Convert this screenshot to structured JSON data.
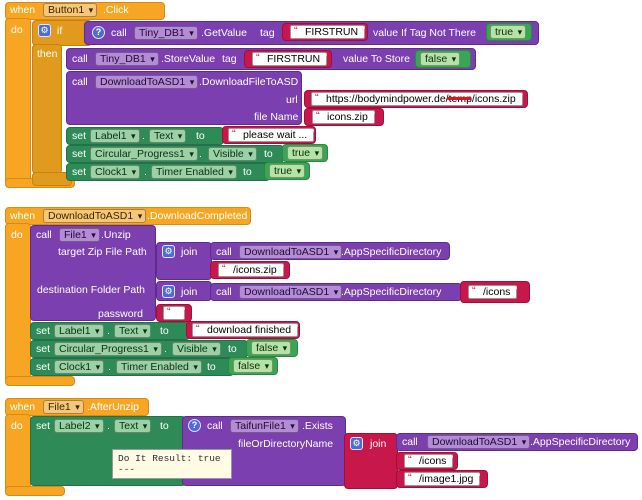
{
  "k": {
    "when": "when",
    "do": "do",
    "then": "then",
    "if": "if",
    "call": "call",
    "set": "set",
    "to": "to",
    "join": "join",
    "gear": "⚙",
    "help": "?",
    "dot": "."
  },
  "b1": {
    "comp": "Button1",
    "evt": ".Click",
    "db_comp": "Tiny_DB1",
    "getvalue": ".GetValue",
    "tag": "tag",
    "firstrun": "FIRSTRUN",
    "vint": "value If Tag Not There",
    "true": "true",
    "db_comp2": "Tiny_DB1",
    "storevalue": ".StoreValue",
    "tag2": "tag",
    "firstrun2": "FIRSTRUN",
    "vts": "value To Store",
    "false": "false",
    "dl_comp": "DownloadToASD1",
    "dlfn": ".DownloadFileToASD",
    "url_label": "url",
    "url_val": "https://bodymindpower.de/temp/icons.zip",
    "fname_label": "file Name",
    "fname_val": "icons.zip",
    "lbl": "Label1",
    "lbl_prop": "Text",
    "lbl_val": "please wait ...",
    "cp": "Circular_Progress1",
    "cp_prop": "Visible",
    "cp_val": "true",
    "clk": "Clock1",
    "clk_prop": "Timer Enabled",
    "clk_val": "true"
  },
  "b2": {
    "comp": "DownloadToASD1",
    "evt": ".DownloadCompleted",
    "file": "File1",
    "unzip": ".Unzip",
    "tzfp": "target Zip File Path",
    "asd_comp": "DownloadToASD1",
    "asd_prop": ".AppSpecificDirectory",
    "tzfp_str": "/icons.zip",
    "dfp": "destination Folder Path",
    "asd_comp2": "DownloadToASD1",
    "asd_prop2": ".AppSpecificDirectory",
    "dfp_str": "/icons",
    "pw": "password",
    "lbl": "Label1",
    "lbl_prop": "Text",
    "lbl_val": "download finished",
    "cp": "Circular_Progress1",
    "cp_prop": "Visible",
    "cp_val": "false",
    "clk": "Clock1",
    "clk_prop": "Timer Enabled",
    "clk_val": "false"
  },
  "b3": {
    "comp": "File1",
    "evt": ".AfterUnzip",
    "lbl": "Label2",
    "lbl_prop": "Text",
    "tf": "TaifunFile1",
    "exists": ".Exists",
    "fodn": "fileOrDirectoryName",
    "asd_comp": "DownloadToASD1",
    "asd_prop": ".AppSpecificDirectory",
    "s1": "/icons",
    "s2": "/image1.jpg",
    "tip": "Do It Result: true\n---"
  }
}
